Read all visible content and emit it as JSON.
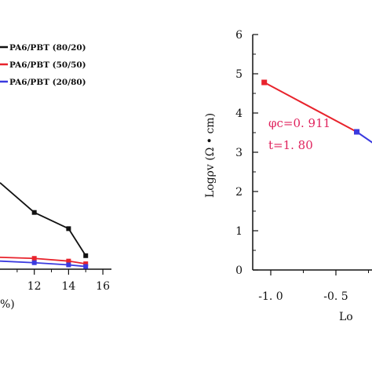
{
  "colors": {
    "black_series": "#111111",
    "red_series": "#e8232c",
    "blue_series": "#3a3adf",
    "annotation": "#e0245e"
  },
  "chart_data": [
    {
      "type": "line",
      "title": "",
      "xlabel": "%)",
      "ylabel": "",
      "xlim": [
        10,
        16.5
      ],
      "ylim": [
        -0.2,
        4.2
      ],
      "x_ticks": [
        12,
        14,
        16
      ],
      "x_tick_labels": [
        "12",
        "14",
        "16"
      ],
      "legend_placement": "top",
      "series": [
        {
          "name": "PA6/PBT (80/20)",
          "marker": "square",
          "color": "#111111",
          "x": [
            10,
            12,
            14,
            15
          ],
          "y": [
            1.4,
            0.85,
            0.55,
            0.05
          ]
        },
        {
          "name": "PA6/PBT (50/50)",
          "marker": "square",
          "color": "#e8232c",
          "x": [
            10,
            12,
            14,
            15
          ],
          "y": [
            0.02,
            0.0,
            -0.05,
            -0.1
          ]
        },
        {
          "name": "PA6/PBT (20/80)",
          "marker": "square",
          "color": "#3a3adf",
          "x": [
            10,
            12,
            14,
            15
          ],
          "y": [
            -0.05,
            -0.08,
            -0.12,
            -0.15
          ]
        }
      ],
      "legend": [
        {
          "label": "PA6/PBT (80/20)",
          "color": "#111111"
        },
        {
          "label": "PA6/PBT (50/50)",
          "color": "#e8232c"
        },
        {
          "label": "PA6/PBT (20/80)",
          "color": "#3a3adf"
        }
      ]
    },
    {
      "type": "line",
      "title": "",
      "xlabel": "Lo",
      "ylabel": "Logρv (Ω • cm)",
      "xlim": [
        -1.2,
        -0.2
      ],
      "ylim": [
        0,
        6
      ],
      "x_ticks": [
        -1.0,
        -0.5
      ],
      "x_tick_labels": [
        "-1. 0",
        "-0. 5"
      ],
      "y_ticks": [
        0,
        1,
        2,
        3,
        4,
        5,
        6
      ],
      "y_tick_labels": [
        "0",
        "1",
        "2",
        "3",
        "4",
        "5",
        "6"
      ],
      "series": [
        {
          "name": "",
          "marker": "square",
          "color": "#e8232c",
          "x": [
            -1.05,
            -0.34
          ],
          "y": [
            4.78,
            3.52
          ]
        },
        {
          "name": "",
          "marker": "square",
          "color": "#3a3adf",
          "x": [
            -0.34,
            -0.2
          ],
          "y": [
            3.52,
            3.2
          ]
        }
      ],
      "annotations": [
        {
          "text": "φc=0. 911",
          "color": "#e0245e"
        },
        {
          "text": "t=1. 80",
          "color": "#e0245e"
        }
      ]
    }
  ]
}
